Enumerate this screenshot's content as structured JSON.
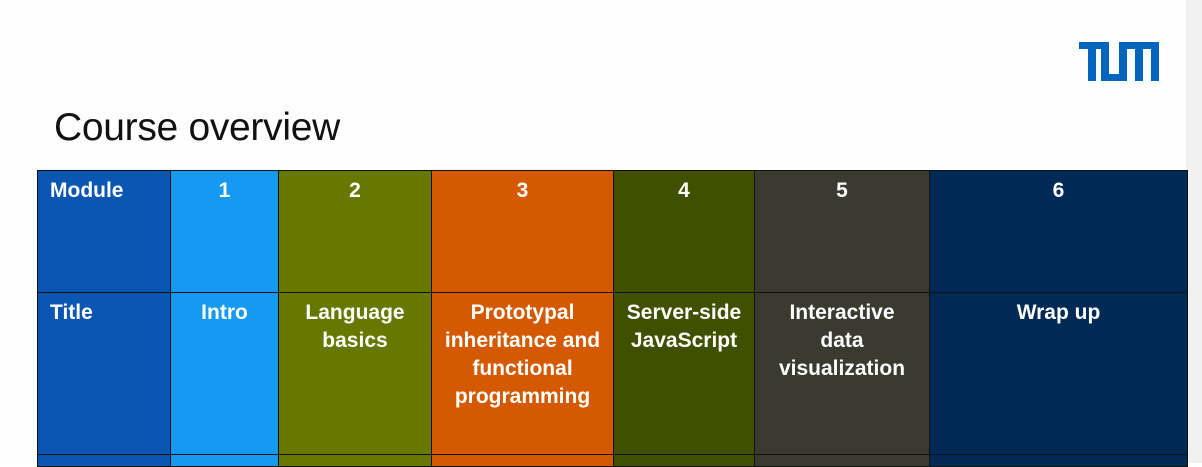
{
  "slide": {
    "title": "Course overview"
  },
  "logo": {
    "icon": "tum-logo",
    "color": "#0065bd"
  },
  "table": {
    "row_labels": {
      "module": "Module",
      "title": "Title"
    },
    "label_color": "#0a56b1",
    "columns": [
      {
        "module": "1",
        "title": "Intro",
        "color": "#1699f0"
      },
      {
        "module": "2",
        "title": "Language basics",
        "color": "#667800"
      },
      {
        "module": "3",
        "title": "Prototypal inheritance and functional programming",
        "color": "#d45900"
      },
      {
        "module": "4",
        "title": "Server-side JavaScript",
        "color": "#404f00"
      },
      {
        "module": "5",
        "title": "Interactive data visualization",
        "color": "#3a3a30"
      },
      {
        "module": "6",
        "title": "Wrap up",
        "color": "#002a56"
      }
    ]
  }
}
